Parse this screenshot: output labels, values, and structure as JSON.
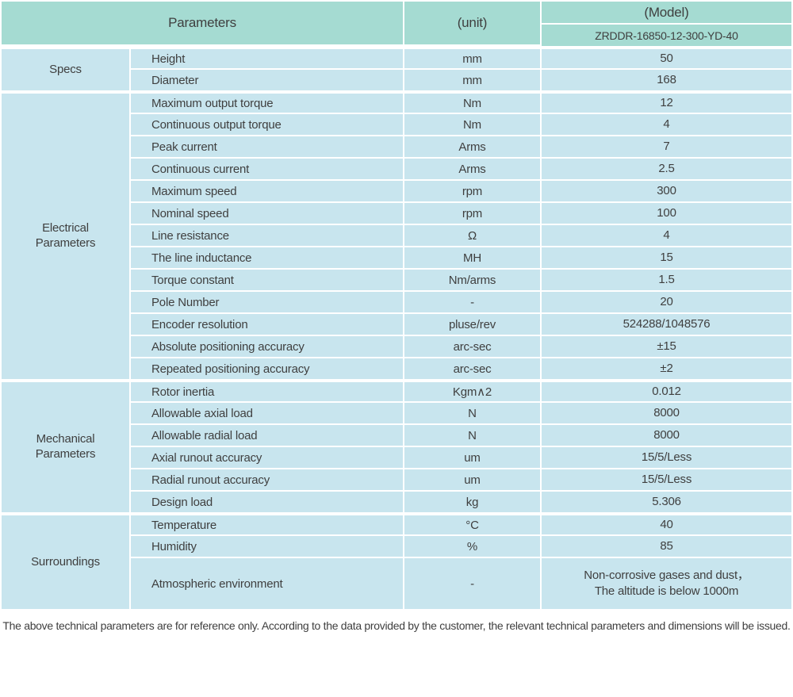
{
  "colors": {
    "header_bg": "#a5dbd2",
    "row_bg": "#c8e5ee",
    "text": "#3f3f3f"
  },
  "header": {
    "parameters_label": "Parameters",
    "unit_label": "(unit)",
    "model_label": "(Model)",
    "model_value": "ZRDDR-16850-12-300-YD-40"
  },
  "sections": [
    {
      "group": "Specs",
      "rows": [
        {
          "param": "Height",
          "unit": "mm",
          "value": "50"
        },
        {
          "param": "Diameter",
          "unit": "mm",
          "value": "168"
        }
      ]
    },
    {
      "group": "Electrical\nParameters",
      "rows": [
        {
          "param": "Maximum output torque",
          "unit": "Nm",
          "value": "12"
        },
        {
          "param": "Continuous output torque",
          "unit": "Nm",
          "value": "4"
        },
        {
          "param": "Peak current",
          "unit": "Arms",
          "value": "7"
        },
        {
          "param": "Continuous current",
          "unit": "Arms",
          "value": "2.5"
        },
        {
          "param": "Maximum speed",
          "unit": "rpm",
          "value": "300"
        },
        {
          "param": "Nominal speed",
          "unit": "rpm",
          "value": "100"
        },
        {
          "param": "Line resistance",
          "unit": "Ω",
          "value": "4"
        },
        {
          "param": "The line inductance",
          "unit": "MH",
          "value": "15"
        },
        {
          "param": "Torque constant",
          "unit": "Nm/arms",
          "value": "1.5"
        },
        {
          "param": "Pole Number",
          "unit": "-",
          "value": "20"
        },
        {
          "param": "Encoder resolution",
          "unit": "pluse/rev",
          "value": "524288/1048576"
        },
        {
          "param": "Absolute positioning accuracy",
          "unit": "arc-sec",
          "value": "±15"
        },
        {
          "param": "Repeated positioning accuracy",
          "unit": "arc-sec",
          "value": "±2"
        }
      ]
    },
    {
      "group": "Mechanical\nParameters",
      "rows": [
        {
          "param": "Rotor inertia",
          "unit": "Kgm∧2",
          "value": "0.012"
        },
        {
          "param": "Allowable axial load",
          "unit": "N",
          "value": "8000"
        },
        {
          "param": "Allowable radial load",
          "unit": "N",
          "value": "8000"
        },
        {
          "param": "Axial runout accuracy",
          "unit": "um",
          "value": "15/5/Less"
        },
        {
          "param": "Radial runout accuracy",
          "unit": "um",
          "value": "15/5/Less"
        },
        {
          "param": "Design load",
          "unit": "kg",
          "value": "5.306"
        }
      ]
    },
    {
      "group": "Surroundings",
      "rows": [
        {
          "param": "Temperature",
          "unit": "°C",
          "value": "40"
        },
        {
          "param": "Humidity",
          "unit": "%",
          "value": "85"
        },
        {
          "param": "Atmospheric environment",
          "unit": "-",
          "value": "Non-corrosive gases and dust，\nThe altitude is below 1000m",
          "tall": true
        }
      ]
    }
  ],
  "footer": {
    "note": "The above technical parameters are for reference only. According to the data provided by the customer, the relevant technical parameters and dimensions will be issued."
  }
}
